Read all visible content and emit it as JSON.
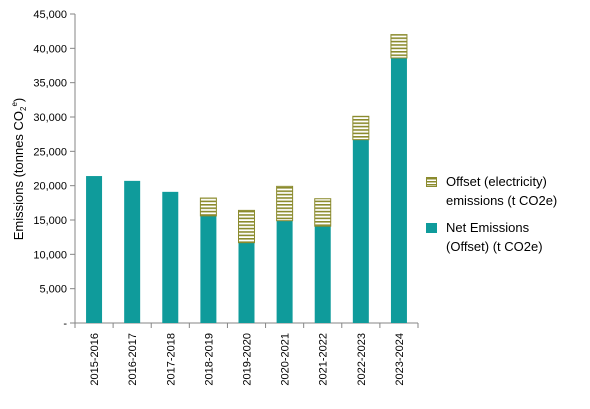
{
  "chart_data": {
    "type": "bar",
    "stacked": true,
    "categories": [
      "2015-2016",
      "2016-2017",
      "2017-2018",
      "2018-2019",
      "2019-2020",
      "2020-2021",
      "2021-2022",
      "2022-2023",
      "2023-2024"
    ],
    "series": [
      {
        "name": "Net Emissions (Offset) (t CO2e)",
        "color": "#0f9b9b",
        "values": [
          21400,
          20700,
          19100,
          15600,
          11700,
          14900,
          14100,
          26700,
          38600
        ]
      },
      {
        "name": "Offset (electricity) emissions (t CO2e)",
        "color": "#8b8b2e",
        "pattern": "horizontal-stripes",
        "values": [
          0,
          0,
          0,
          2600,
          4700,
          5000,
          4000,
          3400,
          3400
        ]
      }
    ],
    "ylabel_main": "Emissions (tonnes CO",
    "ylabel_sub": "2",
    "ylabel_sup": "e",
    "ylabel_close": ")",
    "yticks": [
      "-",
      "5,000",
      "10,000",
      "15,000",
      "20,000",
      "25,000",
      "30,000",
      "35,000",
      "40,000",
      "45,000"
    ],
    "ylim": [
      0,
      45000
    ],
    "grid": false,
    "legend_position": "right"
  },
  "legend": {
    "offset_line1": "Offset (electricity)",
    "offset_line2": "emissions (t CO2e)",
    "net_line1": "Net Emissions",
    "net_line2": "(Offset) (t CO2e)"
  }
}
